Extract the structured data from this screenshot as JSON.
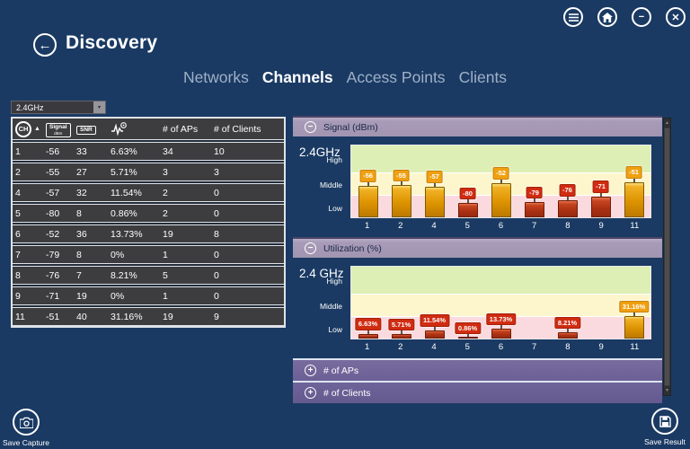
{
  "header": {
    "title": "Discovery",
    "window_controls": {
      "menu": "menu",
      "home": "home",
      "minimize": "minimize",
      "close": "close"
    }
  },
  "tabs": {
    "items": [
      {
        "label": "Networks",
        "active": false
      },
      {
        "label": "Channels",
        "active": true
      },
      {
        "label": "Access Points",
        "active": false
      },
      {
        "label": "Clients",
        "active": false
      }
    ]
  },
  "band_selector": {
    "value": "2.4GHz"
  },
  "channel_table": {
    "headers": {
      "ch": "CH",
      "sort_icon": "sort-ascending",
      "signal": "Signal",
      "signal_unit": "dBm",
      "snr": "SNR",
      "utilization_icon": "utilization-graph",
      "aps": "# of APs",
      "clients": "# of Clients"
    },
    "rows": [
      {
        "ch": "1",
        "signal": "-56",
        "snr": "33",
        "utilization": "6.63%",
        "aps": "34",
        "clients": "10"
      },
      {
        "ch": "2",
        "signal": "-55",
        "snr": "27",
        "utilization": "5.71%",
        "aps": "3",
        "clients": "3"
      },
      {
        "ch": "4",
        "signal": "-57",
        "snr": "32",
        "utilization": "11.54%",
        "aps": "2",
        "clients": "0"
      },
      {
        "ch": "5",
        "signal": "-80",
        "snr": "8",
        "utilization": "0.86%",
        "aps": "2",
        "clients": "0"
      },
      {
        "ch": "6",
        "signal": "-52",
        "snr": "36",
        "utilization": "13.73%",
        "aps": "19",
        "clients": "8"
      },
      {
        "ch": "7",
        "signal": "-79",
        "snr": "8",
        "utilization": "0%",
        "aps": "1",
        "clients": "0"
      },
      {
        "ch": "8",
        "signal": "-76",
        "snr": "7",
        "utilization": "8.21%",
        "aps": "5",
        "clients": "0"
      },
      {
        "ch": "9",
        "signal": "-71",
        "snr": "19",
        "utilization": "0%",
        "aps": "1",
        "clients": "0"
      },
      {
        "ch": "11",
        "signal": "-51",
        "snr": "40",
        "utilization": "31.16%",
        "aps": "19",
        "clients": "9"
      }
    ]
  },
  "accordion": {
    "signal": {
      "title": "Signal (dBm)",
      "state": "expanded"
    },
    "utilization": {
      "title": "Utilization (%)",
      "state": "expanded"
    },
    "aps": {
      "title": "# of APs",
      "state": "collapsed"
    },
    "clients": {
      "title": "# of Clients",
      "state": "collapsed"
    }
  },
  "chart_data": [
    {
      "type": "bar",
      "title": "Signal (dBm)",
      "band": "2.4GHz",
      "x": [
        "1",
        "2",
        "4",
        "5",
        "6",
        "7",
        "8",
        "9",
        "11"
      ],
      "values": [
        -56,
        -55,
        -57,
        -80,
        -52,
        -79,
        -76,
        -71,
        -51
      ],
      "labels": [
        "-56",
        "-55",
        "-57",
        "-80",
        "-52",
        "-79",
        "-76",
        "-71",
        "-51"
      ],
      "colors": [
        "gold",
        "gold",
        "gold",
        "red",
        "gold",
        "red",
        "red",
        "red",
        "gold"
      ],
      "ylim": [
        -100,
        0
      ],
      "yticks": [
        "Low",
        "Middle",
        "High"
      ],
      "bands": {
        "pink": [
          0,
          30
        ],
        "yellow": [
          30,
          61
        ],
        "green": [
          61,
          100
        ]
      },
      "xlabel": "",
      "ylabel": ""
    },
    {
      "type": "bar",
      "title": "Utilization (%)",
      "band": "2.4 GHz",
      "x": [
        "1",
        "2",
        "4",
        "5",
        "6",
        "7",
        "8",
        "9",
        "11"
      ],
      "values": [
        6.63,
        5.71,
        11.54,
        0.86,
        13.73,
        0,
        8.21,
        0,
        31.16
      ],
      "labels": [
        "6.63%",
        "5.71%",
        "11.54%",
        "0.86%",
        "13.73%",
        null,
        "8.21%",
        null,
        "31.16%"
      ],
      "colors": [
        "red",
        "red",
        "red",
        "red",
        "red",
        null,
        "red",
        null,
        "gold"
      ],
      "ylim": [
        0,
        100
      ],
      "yticks": [
        "Low",
        "Middle",
        "High"
      ],
      "bands": {
        "pink": [
          0,
          30
        ],
        "yellow": [
          30,
          61
        ],
        "green": [
          61,
          100
        ]
      },
      "xlabel": "",
      "ylabel": ""
    }
  ],
  "footer": {
    "save_capture": "Save Capture",
    "save_result": "Save Result"
  },
  "colors": {
    "background": "#1a3a63",
    "panel_header_light": "#a79bb7",
    "panel_header_dark": "#6b6095",
    "table_bg": "#3d3d40",
    "bar_gold": "#e89b0a",
    "bar_red": "#c23317",
    "band_green": "#ddefb5",
    "band_yellow": "#fdf6cd",
    "band_pink": "#fadadf"
  }
}
